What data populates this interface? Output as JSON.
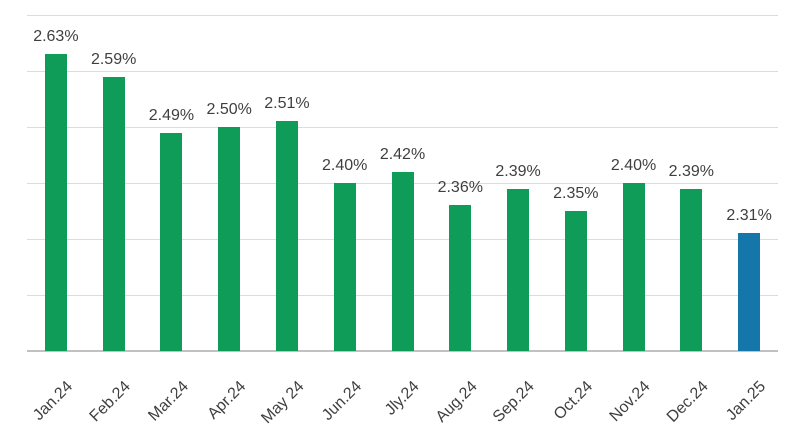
{
  "chart_data": {
    "type": "bar",
    "title": "",
    "xlabel": "",
    "ylabel": "",
    "categories": [
      "Jan.24",
      "Feb.24",
      "Mar.24",
      "Apr.24",
      "May 24",
      "Jun.24",
      "Jly.24",
      "Aug.24",
      "Sep.24",
      "Oct.24",
      "Nov.24",
      "Dec.24",
      "Jan.25"
    ],
    "values": [
      2.63,
      2.59,
      2.49,
      2.5,
      2.51,
      2.4,
      2.42,
      2.36,
      2.39,
      2.35,
      2.4,
      2.39,
      2.31
    ],
    "value_labels": [
      "2.63%",
      "2.59%",
      "2.49%",
      "2.50%",
      "2.51%",
      "2.40%",
      "2.42%",
      "2.36%",
      "2.39%",
      "2.35%",
      "2.40%",
      "2.39%",
      "2.31%"
    ],
    "unit": "%",
    "ylim": [
      2.1,
      2.7
    ],
    "grid": true,
    "grid_step": 0.1,
    "y_tick_labels_visible": false,
    "legend": "none",
    "highlight_index": 12,
    "colors": {
      "bar_default": "#0f9c58",
      "bar_highlight": "#1476a9",
      "gridline": "#dcdcdc",
      "axis_line": "#c1c1c1",
      "label_text": "#3f3f3f",
      "background": "#ffffff"
    }
  }
}
